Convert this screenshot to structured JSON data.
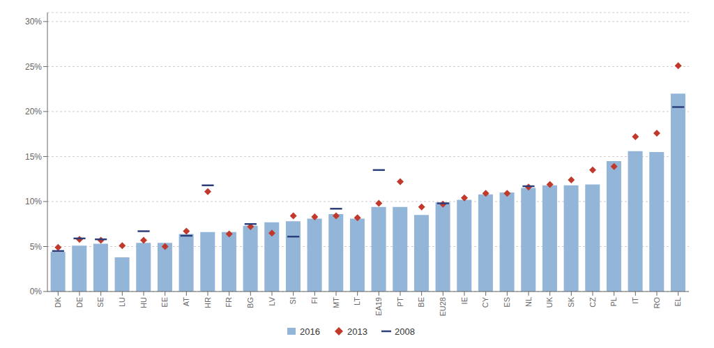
{
  "chart_data": {
    "type": "bar",
    "categories": [
      "DK",
      "DE",
      "SE",
      "LU",
      "HU",
      "EE",
      "AT",
      "HR",
      "FR",
      "BG",
      "LV",
      "SI",
      "FI",
      "MT",
      "LT",
      "EA19",
      "PT",
      "BE",
      "EU28",
      "IE",
      "CY",
      "ES",
      "NL",
      "UK",
      "SK",
      "CZ",
      "PL",
      "IT",
      "RO",
      "EL"
    ],
    "series": [
      {
        "name": "2016",
        "type": "bar",
        "color": "#93b5d8",
        "values": [
          4.4,
          5.1,
          5.3,
          3.8,
          5.4,
          5.4,
          6.4,
          6.6,
          6.6,
          7.3,
          7.7,
          7.8,
          8.1,
          8.6,
          8.1,
          9.4,
          9.4,
          8.5,
          9.9,
          10.2,
          10.8,
          11.0,
          11.5,
          11.8,
          11.8,
          11.9,
          14.5,
          15.6,
          15.5,
          22.0
        ]
      },
      {
        "name": "2013",
        "type": "scatter",
        "marker": "diamond",
        "color": "#c0392b",
        "values": [
          4.9,
          5.8,
          5.7,
          5.1,
          5.7,
          5.0,
          6.7,
          11.1,
          6.4,
          7.2,
          6.5,
          8.4,
          8.3,
          8.4,
          8.2,
          9.8,
          12.2,
          9.4,
          9.7,
          10.4,
          10.9,
          10.9,
          11.6,
          11.9,
          12.4,
          13.5,
          13.9,
          17.2,
          17.6,
          25.1
        ]
      },
      {
        "name": "2008",
        "type": "scatter",
        "marker": "dash",
        "color": "#2c3e7a",
        "values": [
          4.5,
          5.9,
          5.8,
          null,
          6.7,
          null,
          6.2,
          11.8,
          null,
          7.5,
          null,
          6.1,
          null,
          9.2,
          null,
          13.5,
          null,
          null,
          9.8,
          null,
          null,
          null,
          11.7,
          null,
          null,
          null,
          null,
          null,
          null,
          20.5
        ]
      }
    ],
    "ylim": [
      0,
      31
    ],
    "yticks": [
      {
        "value": 0,
        "label": "0%"
      },
      {
        "value": 5,
        "label": "5%"
      },
      {
        "value": 10,
        "label": "10%"
      },
      {
        "value": 15,
        "label": "15%"
      },
      {
        "value": 20,
        "label": "20%"
      },
      {
        "value": 25,
        "label": "25%"
      },
      {
        "value": 30,
        "label": "30%"
      }
    ],
    "grid": true,
    "legend": "bottom"
  }
}
